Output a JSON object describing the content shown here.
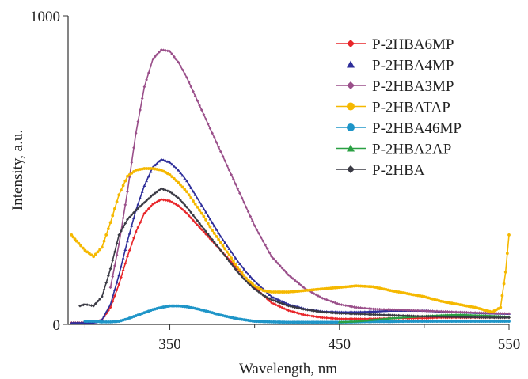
{
  "chart_data": {
    "type": "line",
    "title": "",
    "xlabel": "Wavelength, nm",
    "ylabel": "Intensity, a.u.",
    "xlim": [
      290,
      550
    ],
    "ylim": [
      0,
      1000
    ],
    "x_ticks": [
      {
        "value": 350,
        "label": "350"
      },
      {
        "value": 450,
        "label": "450"
      },
      {
        "value": 550,
        "label": "550"
      }
    ],
    "y_ticks": [
      {
        "value": 0,
        "label": "0"
      },
      {
        "value": 1000,
        "label": "1000"
      }
    ],
    "grid": false,
    "legend_position": "top-right",
    "series": [
      {
        "name": "P-2HBA6MP",
        "color": "#e8262a",
        "marker": "diamond",
        "x": [
          292,
          300,
          305,
          310,
          315,
          320,
          325,
          330,
          335,
          340,
          345,
          350,
          355,
          360,
          365,
          370,
          375,
          380,
          385,
          390,
          395,
          400,
          405,
          410,
          420,
          430,
          440,
          450,
          460,
          470,
          480,
          490,
          500,
          510,
          520,
          530,
          540,
          550
        ],
        "y": [
          5,
          5,
          5,
          15,
          55,
          130,
          220,
          300,
          360,
          390,
          405,
          400,
          385,
          360,
          330,
          300,
          270,
          240,
          210,
          180,
          150,
          120,
          95,
          70,
          45,
          30,
          22,
          18,
          18,
          18,
          20,
          20,
          20,
          22,
          22,
          22,
          22,
          22
        ]
      },
      {
        "name": "P-2HBA4MP",
        "color": "#2e2e9a",
        "marker": "triangle",
        "x": [
          292,
          300,
          305,
          310,
          315,
          320,
          325,
          330,
          335,
          340,
          345,
          350,
          355,
          360,
          365,
          370,
          375,
          380,
          385,
          390,
          395,
          400,
          405,
          410,
          420,
          430,
          440,
          450,
          460,
          470,
          480,
          490,
          500,
          510,
          520,
          530,
          540,
          550
        ],
        "y": [
          5,
          5,
          5,
          15,
          65,
          160,
          270,
          370,
          450,
          510,
          535,
          525,
          500,
          465,
          420,
          375,
          330,
          285,
          245,
          205,
          170,
          140,
          115,
          90,
          65,
          50,
          42,
          40,
          40,
          42,
          45,
          45,
          45,
          42,
          40,
          38,
          36,
          35
        ]
      },
      {
        "name": "P-2HBA3MP",
        "color": "#9a4f8a",
        "marker": "diamond",
        "x": [
          315,
          320,
          325,
          330,
          335,
          340,
          345,
          350,
          355,
          360,
          365,
          370,
          375,
          380,
          385,
          390,
          395,
          400,
          405,
          410,
          420,
          430,
          440,
          450,
          460,
          470,
          480,
          490,
          500,
          510,
          520,
          530,
          540,
          550
        ],
        "y": [
          120,
          260,
          430,
          620,
          770,
          860,
          890,
          885,
          850,
          800,
          740,
          680,
          620,
          560,
          500,
          440,
          380,
          320,
          270,
          220,
          160,
          115,
          85,
          65,
          55,
          50,
          48,
          46,
          44,
          42,
          40,
          38,
          36,
          35
        ]
      },
      {
        "name": "P-2HBATAP",
        "color": "#f5b800",
        "marker": "circle",
        "x": [
          292,
          295,
          300,
          305,
          310,
          315,
          320,
          325,
          330,
          335,
          340,
          345,
          350,
          355,
          360,
          365,
          370,
          375,
          380,
          385,
          390,
          395,
          400,
          405,
          410,
          420,
          430,
          440,
          450,
          460,
          470,
          480,
          490,
          500,
          510,
          520,
          530,
          540,
          545,
          548,
          550
        ],
        "y": [
          290,
          270,
          240,
          220,
          250,
          330,
          420,
          480,
          500,
          505,
          505,
          500,
          485,
          460,
          430,
          390,
          350,
          305,
          265,
          225,
          185,
          150,
          125,
          110,
          105,
          105,
          110,
          115,
          120,
          125,
          122,
          110,
          100,
          90,
          75,
          65,
          55,
          40,
          55,
          170,
          290
        ]
      },
      {
        "name": "P-2HBA46MP",
        "color": "#1e95c8",
        "marker": "circle",
        "x": [
          300,
          305,
          310,
          315,
          320,
          325,
          330,
          335,
          340,
          345,
          350,
          355,
          360,
          365,
          370,
          375,
          380,
          385,
          390,
          395,
          400,
          410,
          420,
          430,
          440,
          450,
          460,
          470,
          480,
          490,
          500,
          510,
          520,
          530,
          540,
          550
        ],
        "y": [
          10,
          10,
          8,
          8,
          10,
          18,
          28,
          38,
          48,
          55,
          60,
          60,
          57,
          52,
          45,
          38,
          30,
          24,
          18,
          14,
          10,
          8,
          7,
          7,
          7,
          7,
          8,
          9,
          9,
          10,
          10,
          10,
          10,
          10,
          10,
          10
        ]
      },
      {
        "name": "P-2HBA2AP",
        "color": "#2aa043",
        "marker": "triangle",
        "x": [
          450,
          460,
          470,
          480,
          490,
          500,
          510,
          520,
          530,
          540,
          550
        ],
        "y": [
          8,
          10,
          15,
          20,
          24,
          27,
          30,
          32,
          30,
          28,
          25
        ]
      },
      {
        "name": "P-2HBA",
        "color": "#3a3a44",
        "marker": "diamond",
        "x": [
          297,
          300,
          305,
          310,
          315,
          320,
          325,
          330,
          335,
          340,
          345,
          350,
          355,
          360,
          365,
          370,
          375,
          380,
          385,
          390,
          395,
          400,
          405,
          410,
          420,
          430,
          440,
          450,
          460,
          470,
          480,
          490,
          500,
          510,
          520,
          530,
          540,
          550
        ],
        "y": [
          60,
          65,
          60,
          90,
          180,
          290,
          340,
          370,
          395,
          420,
          440,
          430,
          410,
          380,
          345,
          310,
          275,
          240,
          205,
          170,
          140,
          115,
          95,
          80,
          60,
          48,
          40,
          36,
          34,
          32,
          30,
          28,
          26,
          25,
          24,
          23,
          22,
          22
        ]
      }
    ]
  }
}
